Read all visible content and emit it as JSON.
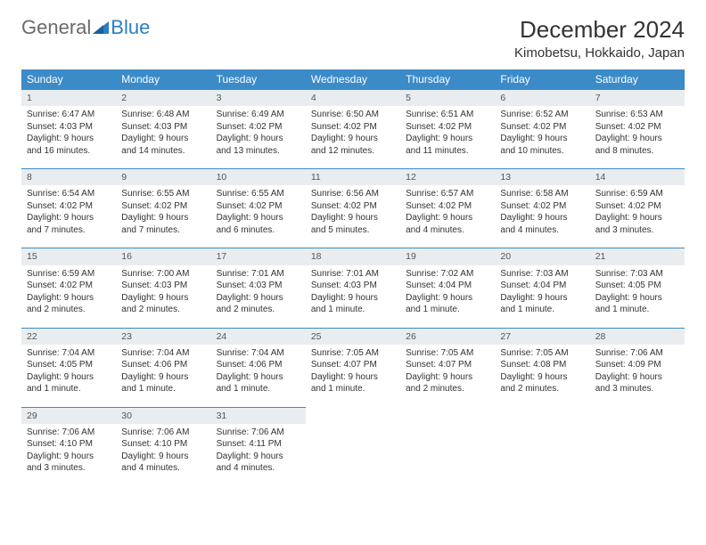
{
  "logo": {
    "part1": "General",
    "part2": "Blue"
  },
  "title": "December 2024",
  "location": "Kimobetsu, Hokkaido, Japan",
  "colors": {
    "header_bg": "#3b8bc9",
    "header_text": "#ffffff",
    "daynum_bg": "#e9edef",
    "daynum_border": "#3b8bc9",
    "body_bg": "#ffffff",
    "text": "#333333"
  },
  "weekdays": [
    "Sunday",
    "Monday",
    "Tuesday",
    "Wednesday",
    "Thursday",
    "Friday",
    "Saturday"
  ],
  "weeks": [
    [
      {
        "n": 1,
        "sr": "6:47 AM",
        "ss": "4:03 PM",
        "dl": "9 hours and 16 minutes."
      },
      {
        "n": 2,
        "sr": "6:48 AM",
        "ss": "4:03 PM",
        "dl": "9 hours and 14 minutes."
      },
      {
        "n": 3,
        "sr": "6:49 AM",
        "ss": "4:02 PM",
        "dl": "9 hours and 13 minutes."
      },
      {
        "n": 4,
        "sr": "6:50 AM",
        "ss": "4:02 PM",
        "dl": "9 hours and 12 minutes."
      },
      {
        "n": 5,
        "sr": "6:51 AM",
        "ss": "4:02 PM",
        "dl": "9 hours and 11 minutes."
      },
      {
        "n": 6,
        "sr": "6:52 AM",
        "ss": "4:02 PM",
        "dl": "9 hours and 10 minutes."
      },
      {
        "n": 7,
        "sr": "6:53 AM",
        "ss": "4:02 PM",
        "dl": "9 hours and 8 minutes."
      }
    ],
    [
      {
        "n": 8,
        "sr": "6:54 AM",
        "ss": "4:02 PM",
        "dl": "9 hours and 7 minutes."
      },
      {
        "n": 9,
        "sr": "6:55 AM",
        "ss": "4:02 PM",
        "dl": "9 hours and 7 minutes."
      },
      {
        "n": 10,
        "sr": "6:55 AM",
        "ss": "4:02 PM",
        "dl": "9 hours and 6 minutes."
      },
      {
        "n": 11,
        "sr": "6:56 AM",
        "ss": "4:02 PM",
        "dl": "9 hours and 5 minutes."
      },
      {
        "n": 12,
        "sr": "6:57 AM",
        "ss": "4:02 PM",
        "dl": "9 hours and 4 minutes."
      },
      {
        "n": 13,
        "sr": "6:58 AM",
        "ss": "4:02 PM",
        "dl": "9 hours and 4 minutes."
      },
      {
        "n": 14,
        "sr": "6:59 AM",
        "ss": "4:02 PM",
        "dl": "9 hours and 3 minutes."
      }
    ],
    [
      {
        "n": 15,
        "sr": "6:59 AM",
        "ss": "4:02 PM",
        "dl": "9 hours and 2 minutes."
      },
      {
        "n": 16,
        "sr": "7:00 AM",
        "ss": "4:03 PM",
        "dl": "9 hours and 2 minutes."
      },
      {
        "n": 17,
        "sr": "7:01 AM",
        "ss": "4:03 PM",
        "dl": "9 hours and 2 minutes."
      },
      {
        "n": 18,
        "sr": "7:01 AM",
        "ss": "4:03 PM",
        "dl": "9 hours and 1 minute."
      },
      {
        "n": 19,
        "sr": "7:02 AM",
        "ss": "4:04 PM",
        "dl": "9 hours and 1 minute."
      },
      {
        "n": 20,
        "sr": "7:03 AM",
        "ss": "4:04 PM",
        "dl": "9 hours and 1 minute."
      },
      {
        "n": 21,
        "sr": "7:03 AM",
        "ss": "4:05 PM",
        "dl": "9 hours and 1 minute."
      }
    ],
    [
      {
        "n": 22,
        "sr": "7:04 AM",
        "ss": "4:05 PM",
        "dl": "9 hours and 1 minute."
      },
      {
        "n": 23,
        "sr": "7:04 AM",
        "ss": "4:06 PM",
        "dl": "9 hours and 1 minute."
      },
      {
        "n": 24,
        "sr": "7:04 AM",
        "ss": "4:06 PM",
        "dl": "9 hours and 1 minute."
      },
      {
        "n": 25,
        "sr": "7:05 AM",
        "ss": "4:07 PM",
        "dl": "9 hours and 1 minute."
      },
      {
        "n": 26,
        "sr": "7:05 AM",
        "ss": "4:07 PM",
        "dl": "9 hours and 2 minutes."
      },
      {
        "n": 27,
        "sr": "7:05 AM",
        "ss": "4:08 PM",
        "dl": "9 hours and 2 minutes."
      },
      {
        "n": 28,
        "sr": "7:06 AM",
        "ss": "4:09 PM",
        "dl": "9 hours and 3 minutes."
      }
    ],
    [
      {
        "n": 29,
        "sr": "7:06 AM",
        "ss": "4:10 PM",
        "dl": "9 hours and 3 minutes."
      },
      {
        "n": 30,
        "sr": "7:06 AM",
        "ss": "4:10 PM",
        "dl": "9 hours and 4 minutes."
      },
      {
        "n": 31,
        "sr": "7:06 AM",
        "ss": "4:11 PM",
        "dl": "9 hours and 4 minutes."
      },
      null,
      null,
      null,
      null
    ]
  ],
  "labels": {
    "sunrise": "Sunrise:",
    "sunset": "Sunset:",
    "daylight": "Daylight:"
  }
}
